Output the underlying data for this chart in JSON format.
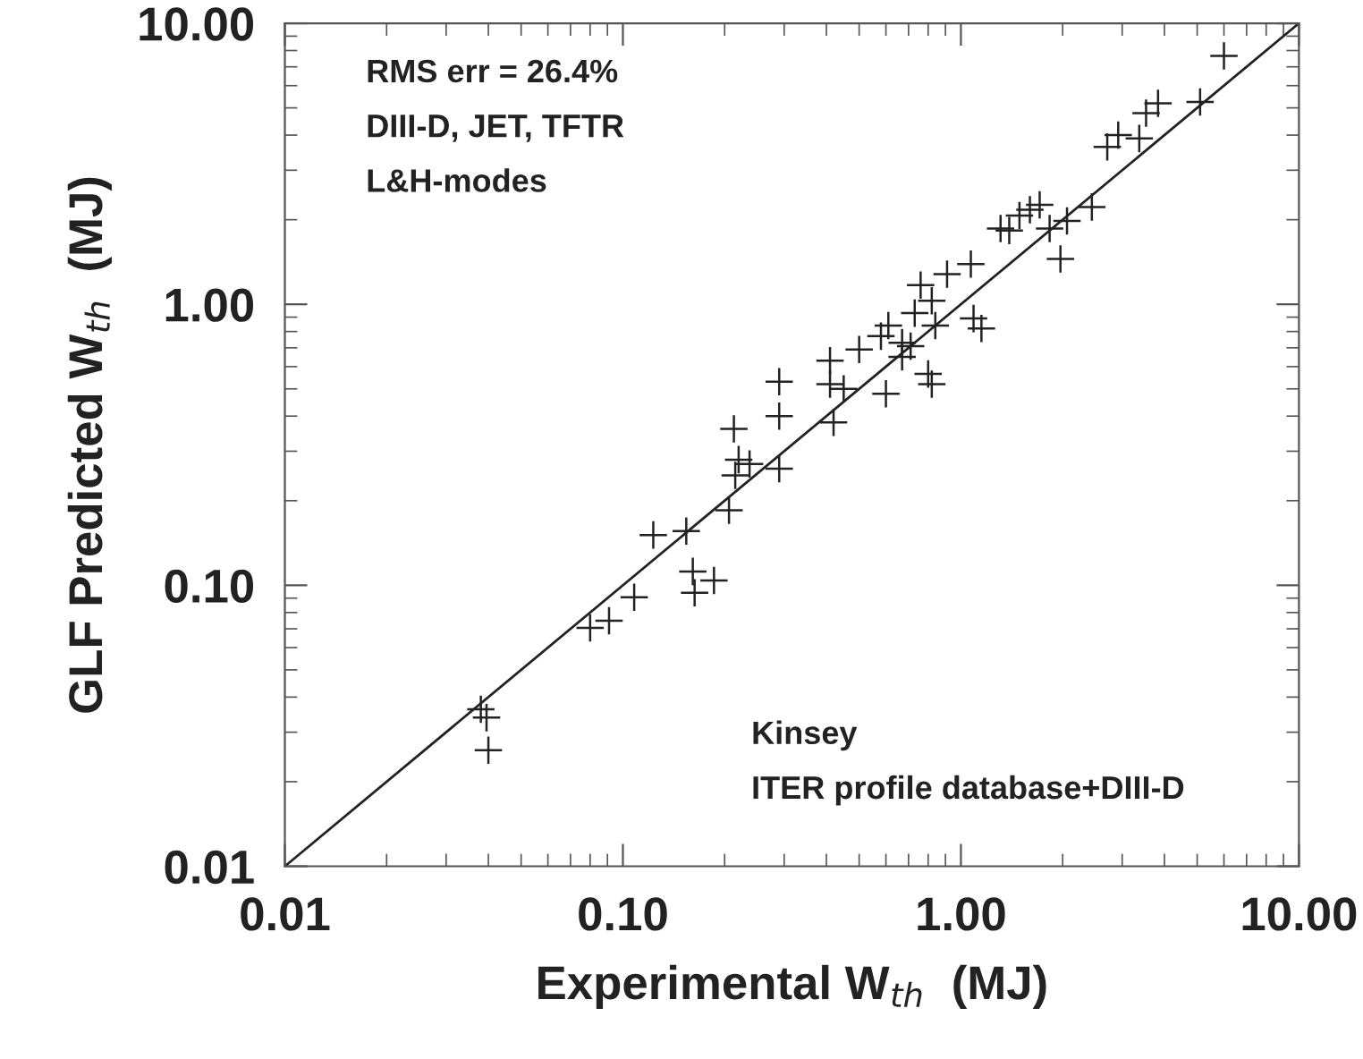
{
  "chart_data": {
    "type": "scatter",
    "xlabel": "Experimental W$_{th}$  (MJ)",
    "ylabel": "GLF Predicted W$_{th}$  (MJ)",
    "log": "xy",
    "xlim": [
      0.01,
      10
    ],
    "ylim": [
      0.01,
      10
    ],
    "xticks": [
      {
        "value": 0.01,
        "label": "0.01"
      },
      {
        "value": 0.1,
        "label": "0.10"
      },
      {
        "value": 1,
        "label": "1.00"
      },
      {
        "value": 10,
        "label": "10.00"
      }
    ],
    "yticks": [
      {
        "value": 0.01,
        "label": "0.01"
      },
      {
        "value": 0.1,
        "label": "0.10"
      },
      {
        "value": 1,
        "label": "1.00"
      },
      {
        "value": 10,
        "label": "10.00"
      }
    ],
    "grid": false,
    "marker": "cross",
    "series": [
      {
        "color": "#222222",
        "x": [
          6.0,
          3.83,
          3.53,
          5.1,
          3.37,
          2.92,
          2.71,
          2.44,
          1.97,
          2.06,
          1.83,
          1.71,
          1.6,
          1.49,
          1.39,
          1.31,
          1.07,
          0.91,
          1.09,
          1.15,
          0.76,
          0.82,
          0.84,
          0.73,
          0.8,
          0.82,
          0.67,
          0.71,
          0.67,
          0.61,
          0.58,
          0.6,
          0.5,
          0.41,
          0.41,
          0.45,
          0.42,
          0.29,
          0.29,
          0.29,
          0.213,
          0.22,
          0.215,
          0.237,
          0.206,
          0.154,
          0.123,
          0.108,
          0.08,
          0.091,
          0.161,
          0.163,
          0.186,
          0.038,
          0.0395,
          0.04
        ],
        "values": [
          7.65,
          5.19,
          4.79,
          5.25,
          3.89,
          4.0,
          3.63,
          2.22,
          1.45,
          1.98,
          1.86,
          2.26,
          2.17,
          2.07,
          1.83,
          1.86,
          1.39,
          1.28,
          0.89,
          0.82,
          1.17,
          1.03,
          0.84,
          0.93,
          0.565,
          0.52,
          0.73,
          0.71,
          0.65,
          0.84,
          0.77,
          0.48,
          0.69,
          0.63,
          0.52,
          0.5,
          0.38,
          0.53,
          0.4,
          0.26,
          0.36,
          0.28,
          0.246,
          0.27,
          0.185,
          0.156,
          0.151,
          0.0906,
          0.0705,
          0.0748,
          0.112,
          0.094,
          0.104,
          0.0362,
          0.0338,
          0.0259
        ]
      },
      {
        "type": "line",
        "color": "#222222",
        "marker": "none",
        "line_style": "solid",
        "x": [
          0.01,
          10
        ],
        "values": [
          0.01,
          10
        ]
      }
    ],
    "annotations": [
      "RMS err = 26.4%",
      "DIII-D, JET, TFTR",
      "L&H-modes",
      "Kinsey",
      "ITER profile database+DIII-D"
    ]
  }
}
